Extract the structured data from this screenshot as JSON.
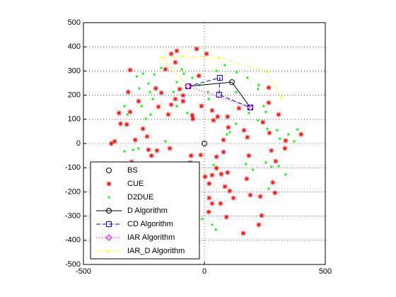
{
  "chart_data": {
    "type": "scatter",
    "xlim": [
      -500,
      500
    ],
    "ylim": [
      -500,
      500
    ],
    "xticks": [
      -500,
      0,
      500
    ],
    "yticks": [
      -500,
      -400,
      -300,
      -200,
      -100,
      0,
      100,
      200,
      300,
      400,
      500
    ],
    "grid": true,
    "legend": "lower left",
    "series": [
      {
        "name": "BS",
        "color": "#000000",
        "marker": "o",
        "line": "none",
        "x": [
          0
        ],
        "y": [
          0
        ]
      },
      {
        "name": "CUE",
        "color": "#ff0000",
        "marker": "*",
        "line": "none",
        "x": [
          -137,
          -114,
          -32,
          9,
          -120,
          -161,
          -307,
          -315,
          -272,
          -307,
          -353,
          -347,
          -321,
          -254,
          -237,
          -231,
          -196,
          -102,
          -88,
          -137,
          -149,
          -190,
          -178,
          -201,
          -50,
          -47,
          -12,
          32,
          38,
          96,
          99,
          143,
          79,
          -371,
          -385,
          -286,
          -301,
          -312,
          -307,
          -219,
          -143,
          -15,
          50,
          79,
          50,
          32,
          20,
          20,
          3,
          70,
          96,
          85,
          105,
          120,
          67,
          32,
          18,
          91,
          190,
          231,
          283,
          292,
          237,
          225,
          161,
          295,
          333,
          336,
          277,
          400,
          307,
          269,
          178,
          184,
          175,
          164,
          242,
          266,
          266,
          -58,
          -58,
          -88,
          -120,
          -23,
          55,
          -55,
          -38
        ],
        "y": [
          371,
          383,
          391,
          371,
          336,
          307,
          304,
          213,
          175,
          131,
          126,
          82,
          79,
          61,
          29,
          -26,
          -29,
          225,
          175,
          161,
          120,
          152,
          210,
          228,
          117,
          102,
          155,
          137,
          96,
          111,
          67,
          146,
          15,
          9,
          0,
          15,
          -76,
          -123,
          -172,
          -50,
          -20,
          -47,
          -55,
          -35,
          -102,
          -131,
          -166,
          -225,
          -137,
          -126,
          -120,
          -178,
          -196,
          -225,
          -248,
          -248,
          -283,
          -304,
          -213,
          -219,
          -161,
          -204,
          -298,
          -336,
          -371,
          -73,
          -20,
          12,
          -29,
          38,
          120,
          44,
          26,
          -50,
          -146,
          55,
          88,
          231,
          169,
          -131,
          -79,
          199,
          184,
          280,
          111,
          -50,
          -96
        ]
      },
      {
        "name": "D2DUE",
        "color": "#00ff00",
        "marker": ".",
        "line": "none",
        "x": [
          -330,
          -318,
          -280,
          -254,
          -231,
          -225,
          -213,
          -260,
          -242,
          -222,
          -269,
          -272,
          -295,
          -257,
          -248,
          -231,
          -318,
          -330,
          -85,
          -114,
          -128,
          -114,
          -70,
          -50,
          -20,
          15,
          18,
          50,
          85,
          134,
          178,
          184,
          225,
          245,
          254,
          222,
          260,
          301,
          312,
          347,
          385,
          371,
          307,
          336,
          277,
          254,
          201,
          172,
          266,
          105,
          131,
          93,
          32,
          47,
          -9,
          38,
          -161,
          -207,
          -93,
          -178,
          222,
          131
        ],
        "y": [
          155,
          120,
          277,
          289,
          248,
          213,
          184,
          155,
          102,
          120,
          228,
          -20,
          -26,
          -85,
          -102,
          -137,
          -131,
          -32,
          289,
          254,
          213,
          155,
          126,
          272,
          242,
          213,
          184,
          301,
          324,
          295,
          272,
          126,
          242,
          155,
          131,
          96,
          61,
          55,
          20,
          38,
          58,
          9,
          -93,
          -128,
          -96,
          -79,
          -108,
          -85,
          -187,
          47,
          82,
          38,
          -336,
          -356,
          -312,
          -88,
          9,
          286,
          307,
          313,
          225,
          213
        ]
      },
      {
        "name": "D Algorithm",
        "color": "#000000",
        "marker": "o",
        "line": "-",
        "x": [
          -67,
          114,
          190
        ],
        "y": [
          237,
          254,
          149
        ]
      },
      {
        "name": "CD Algorithm",
        "color": "#0000ff",
        "marker": "s",
        "line": "--",
        "x": [
          -67,
          64,
          61,
          190
        ],
        "y": [
          237,
          272,
          202,
          149
        ]
      },
      {
        "name": "IAR Algorithm",
        "color": "#ff00ff",
        "marker": "d",
        "line": ":",
        "x": [
          -67,
          190
        ],
        "y": [
          237,
          149
        ]
      },
      {
        "name": "IAR_D Algorithm",
        "color": "#ffff00",
        "marker": ".",
        "line": "-.",
        "x": [
          -67,
          -175,
          -90,
          60,
          260,
          320
        ],
        "y": [
          237,
          355,
          360,
          355,
          295,
          190
        ]
      }
    ]
  }
}
